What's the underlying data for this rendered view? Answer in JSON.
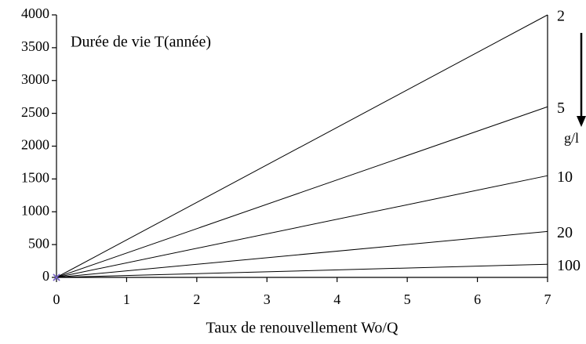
{
  "chart_data": {
    "type": "line",
    "ylabel": "Durée de vie T(année)",
    "xlabel": "Taux de renouvellement Wo/Q",
    "annotation": "g/l",
    "x": [
      0,
      7
    ],
    "series": [
      {
        "name": "2",
        "color": "#000000",
        "values": [
          0,
          4000
        ]
      },
      {
        "name": "5",
        "color": "#000000",
        "values": [
          0,
          2600
        ]
      },
      {
        "name": "10",
        "color": "#000000",
        "values": [
          0,
          1550
        ]
      },
      {
        "name": "20",
        "color": "#000000",
        "values": [
          0,
          700
        ]
      },
      {
        "name": "100",
        "color": "#000000",
        "values": [
          0,
          200
        ]
      }
    ],
    "xlim": [
      0,
      7
    ],
    "xticks": [
      0,
      1,
      2,
      3,
      4,
      5,
      6,
      7
    ],
    "ylim": [
      0,
      4000
    ],
    "yticks": [
      0,
      500,
      1000,
      1500,
      2000,
      2500,
      3000,
      3500,
      4000
    ],
    "grid": false
  }
}
